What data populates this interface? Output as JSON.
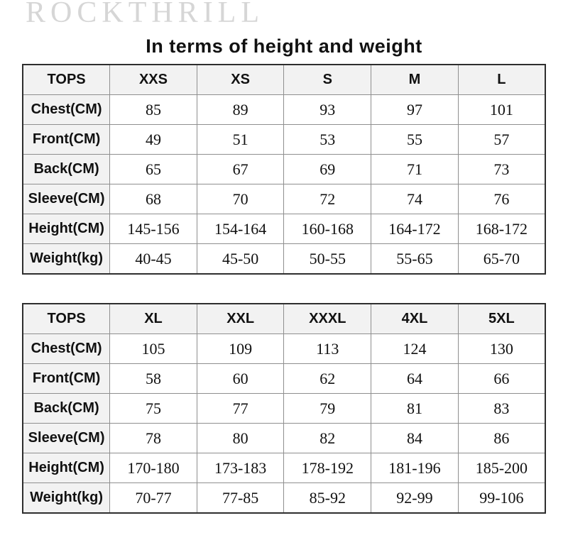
{
  "brand": "ROCKTHRILL",
  "title": "In terms of height and weight",
  "tables": [
    {
      "name": "sizes-xxs-to-l",
      "header": [
        "TOPS",
        "XXS",
        "XS",
        "S",
        "M",
        "L"
      ],
      "rows": [
        {
          "label": "Chest(CM)",
          "values": [
            "85",
            "89",
            "93",
            "97",
            "101"
          ]
        },
        {
          "label": "Front(CM)",
          "values": [
            "49",
            "51",
            "53",
            "55",
            "57"
          ]
        },
        {
          "label": "Back(CM)",
          "values": [
            "65",
            "67",
            "69",
            "71",
            "73"
          ]
        },
        {
          "label": "Sleeve(CM)",
          "values": [
            "68",
            "70",
            "72",
            "74",
            "76"
          ]
        },
        {
          "label": "Height(CM)",
          "values": [
            "145-156",
            "154-164",
            "160-168",
            "164-172",
            "168-172"
          ]
        },
        {
          "label": "Weight(kg)",
          "values": [
            "40-45",
            "45-50",
            "50-55",
            "55-65",
            "65-70"
          ]
        }
      ]
    },
    {
      "name": "sizes-xl-to-5xl",
      "header": [
        "TOPS",
        "XL",
        "XXL",
        "XXXL",
        "4XL",
        "5XL"
      ],
      "rows": [
        {
          "label": "Chest(CM)",
          "values": [
            "105",
            "109",
            "113",
            "124",
            "130"
          ]
        },
        {
          "label": "Front(CM)",
          "values": [
            "58",
            "60",
            "62",
            "64",
            "66"
          ]
        },
        {
          "label": "Back(CM)",
          "values": [
            "75",
            "77",
            "79",
            "81",
            "83"
          ]
        },
        {
          "label": "Sleeve(CM)",
          "values": [
            "78",
            "80",
            "82",
            "84",
            "86"
          ]
        },
        {
          "label": "Height(CM)",
          "values": [
            "170-180",
            "173-183",
            "178-192",
            "181-196",
            "185-200"
          ]
        },
        {
          "label": "Weight(kg)",
          "values": [
            "70-77",
            "77-85",
            "85-92",
            "92-99",
            "99-106"
          ]
        }
      ]
    }
  ],
  "colors": {
    "header_bg": "#f2f2f2",
    "border_inner": "#8f8f8f",
    "border_outer": "#2e2e2e",
    "logo": "#d6d6d6",
    "text": "#111111"
  }
}
